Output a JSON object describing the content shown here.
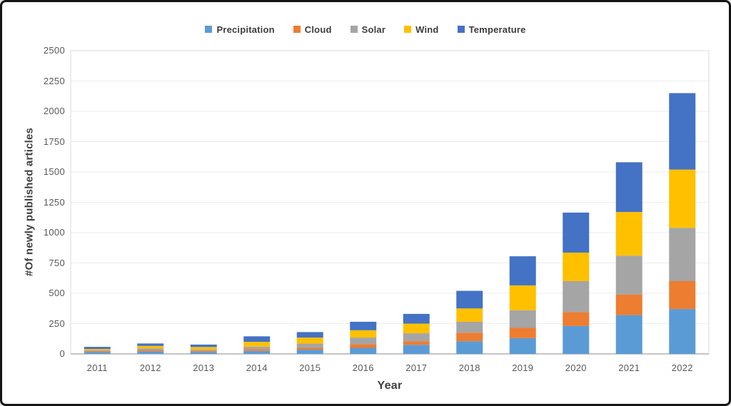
{
  "frame": {
    "background": "#ffffff",
    "border_color": "#141414"
  },
  "style": {
    "gridline_color": "#ececec",
    "plot_border_color": "#d9d9d9",
    "baseline_color": "#c6c6c6",
    "tick_label_color": "#595959",
    "title_color": "#404040"
  },
  "chart_data": {
    "type": "bar",
    "stacked": true,
    "title": "",
    "xlabel": "Year",
    "ylabel": "#Of newly published articles",
    "ylim": [
      0,
      2500
    ],
    "ytick_step": 250,
    "yticks": [
      "0",
      "250",
      "500",
      "750",
      "1000",
      "1250",
      "1500",
      "1750",
      "2000",
      "2250",
      "2500"
    ],
    "grid": true,
    "legend_position": "top",
    "categories": [
      "2011",
      "2012",
      "2013",
      "2014",
      "2015",
      "2016",
      "2017",
      "2018",
      "2019",
      "2020",
      "2021",
      "2022"
    ],
    "series": [
      {
        "name": "Precipitation",
        "color": "#5B9BD5",
        "values": [
          15,
          22,
          15,
          25,
          35,
          50,
          75,
          105,
          130,
          230,
          320,
          370
        ]
      },
      {
        "name": "Cloud",
        "color": "#ED7D31",
        "values": [
          8,
          12,
          10,
          15,
          15,
          30,
          30,
          70,
          85,
          115,
          170,
          230
        ]
      },
      {
        "name": "Solar",
        "color": "#A5A5A5",
        "values": [
          7,
          12,
          12,
          20,
          35,
          55,
          65,
          90,
          145,
          255,
          320,
          440
        ]
      },
      {
        "name": "Wind",
        "color": "#FFC000",
        "values": [
          10,
          20,
          20,
          40,
          50,
          60,
          80,
          110,
          205,
          235,
          360,
          480
        ]
      },
      {
        "name": "Temperature",
        "color": "#4472C4",
        "values": [
          18,
          20,
          20,
          45,
          45,
          70,
          80,
          145,
          240,
          330,
          410,
          630
        ]
      }
    ],
    "totals": [
      58,
      86,
      77,
      145,
      180,
      265,
      330,
      520,
      805,
      1165,
      1580,
      2150
    ]
  }
}
